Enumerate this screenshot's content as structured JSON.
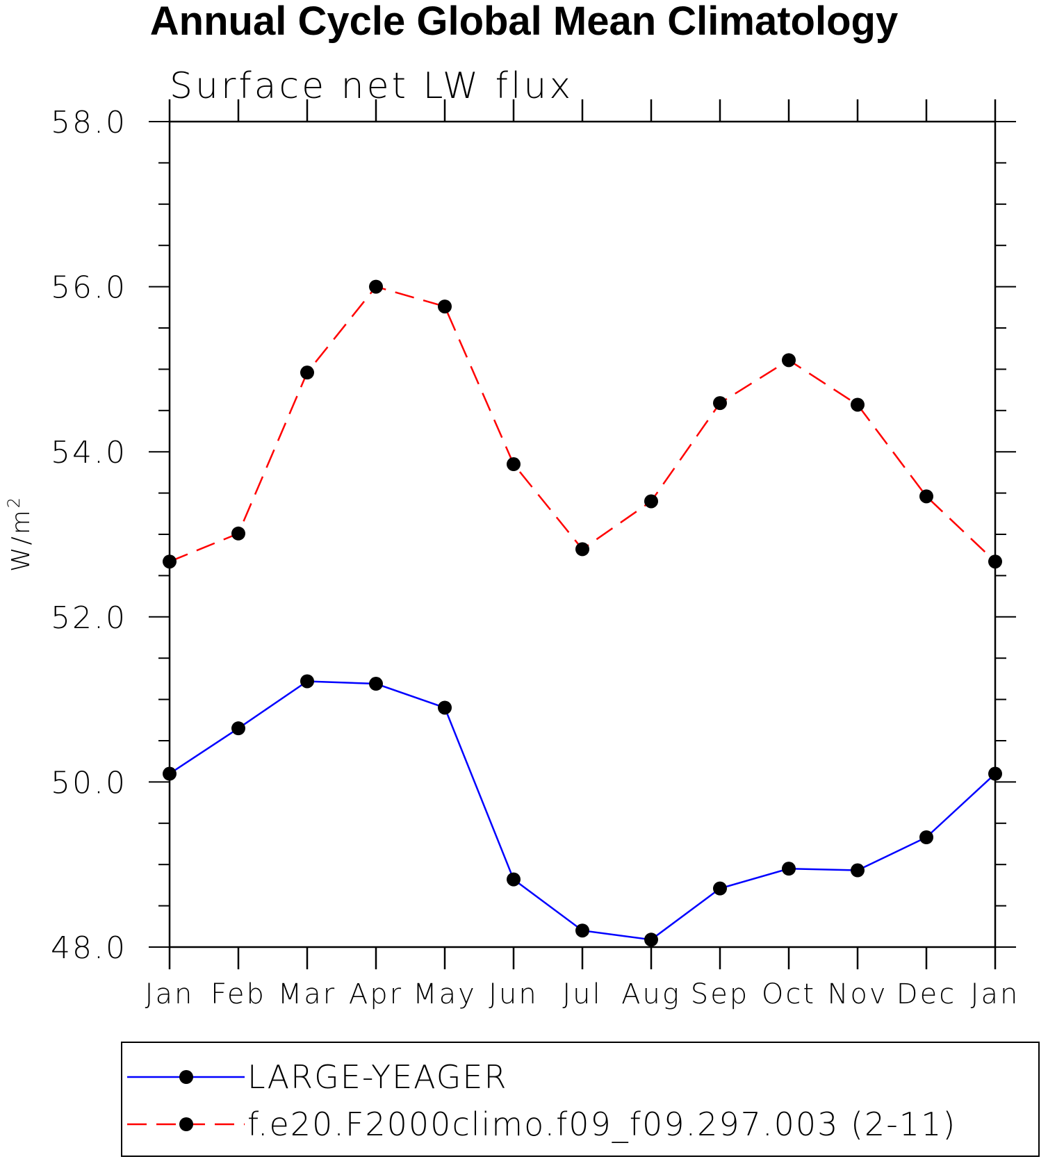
{
  "chart_data": {
    "type": "line",
    "title": "Annual Cycle Global Mean Climatology",
    "subtitle": "Surface net LW flux",
    "xlabel": "",
    "ylabel": "W/m",
    "ylabel_superscript": "2",
    "categories": [
      "Jan",
      "Feb",
      "Mar",
      "Apr",
      "May",
      "Jun",
      "Jul",
      "Aug",
      "Sep",
      "Oct",
      "Nov",
      "Dec",
      "Jan"
    ],
    "ylim": [
      48.0,
      58.0
    ],
    "yticks": [
      "48.0",
      "50.0",
      "52.0",
      "54.0",
      "56.0",
      "58.0"
    ],
    "grid": false,
    "legend_position": "bottom",
    "series": [
      {
        "name": "LARGE-YEAGER",
        "color": "#0000ff",
        "dash": "solid",
        "marker": "filled-circle",
        "values": [
          50.1,
          50.65,
          51.22,
          51.19,
          50.9,
          48.82,
          48.2,
          48.09,
          48.71,
          48.95,
          48.93,
          49.33,
          50.1
        ]
      },
      {
        "name": "f.e20.F2000climo.f09_f09.297.003 (2-11)",
        "color": "#ff0000",
        "dash": "dashed",
        "marker": "filled-circle",
        "values": [
          52.67,
          53.01,
          54.96,
          56.0,
          55.76,
          53.85,
          52.82,
          53.4,
          54.59,
          55.11,
          54.57,
          53.46,
          52.67
        ]
      }
    ]
  }
}
